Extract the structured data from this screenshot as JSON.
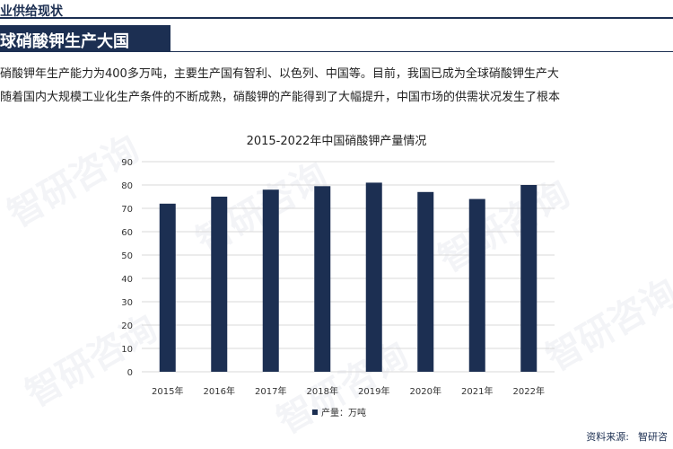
{
  "header": {
    "top_title": "业供给现状",
    "banner_title": "球硝酸钾生产大国"
  },
  "intro": {
    "line1": "硝酸钾年生产能力为400多万吨，主要生产国有智利、以色列、中国等。目前，我国已成为全球硝酸钾生产大",
    "line2": "随着国内大规模工业化生产条件的不断成熟，硝酸钾的产能得到了大幅提升，中国市场的供需状况发生了根本"
  },
  "watermark": {
    "text": "智研咨询"
  },
  "source": {
    "label": "资料来源:",
    "value": "智研咨"
  },
  "colors": {
    "bar": "#1c2f52",
    "grid": "#d9d9d9",
    "axis_text": "#333333"
  },
  "chart_data": {
    "type": "bar",
    "title": "2015-2022年中国硝酸钾产量情况",
    "categories": [
      "2015年",
      "2016年",
      "2017年",
      "2018年",
      "2019年",
      "2020年",
      "2021年",
      "2022年"
    ],
    "series": [
      {
        "name": "产量：万吨",
        "values": [
          72,
          75,
          78,
          79.5,
          81,
          77,
          74,
          80
        ]
      }
    ],
    "ylim": [
      0,
      90
    ],
    "yticks": [
      0,
      10,
      20,
      30,
      40,
      50,
      60,
      70,
      80,
      90
    ],
    "grid": true,
    "legend_position": "bottom"
  }
}
